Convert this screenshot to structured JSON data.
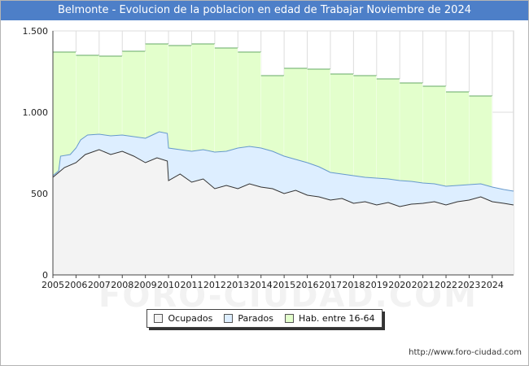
{
  "title": "Belmonte - Evolucion de la poblacion en edad de Trabajar Noviembre de 2024",
  "watermark": "FORO-CIUDAD.COM",
  "source": "http://www.foro-ciudad.com",
  "colors": {
    "title_bg": "#4d7fc8",
    "ocupados": "#f3f3f3",
    "parados": "#ddeeff",
    "hab": "#e3ffcc",
    "hab_line": "#66aa66",
    "parados_line": "#6699cc",
    "ocupados_line": "#333333"
  },
  "legend": [
    {
      "label": "Ocupados",
      "color": "#f3f3f3"
    },
    {
      "label": "Parados",
      "color": "#ddeeff"
    },
    {
      "label": "Hab. entre 16-64",
      "color": "#e3ffcc"
    }
  ],
  "chart_data": {
    "type": "area",
    "title": "Belmonte - Evolucion de la poblacion en edad de Trabajar Noviembre de 2024",
    "xlabel": "",
    "ylabel": "",
    "xlim": [
      2005,
      2024.92
    ],
    "ylim": [
      0,
      1500
    ],
    "x_ticks": [
      "2005",
      "2006",
      "2007",
      "2008",
      "2009",
      "2010",
      "2011",
      "2012",
      "2013",
      "2014",
      "2015",
      "2016",
      "2017",
      "2018",
      "2019",
      "2020",
      "2021",
      "2022",
      "2023",
      "2024"
    ],
    "y_ticks": [
      {
        "value": 0,
        "label": "0"
      },
      {
        "value": 500,
        "label": "500"
      },
      {
        "value": 1000,
        "label": "1.000"
      },
      {
        "value": 1500,
        "label": "1.500"
      }
    ],
    "grid": true,
    "hab_16_64": [
      {
        "year": 2005,
        "value": 1370
      },
      {
        "year": 2006,
        "value": 1350
      },
      {
        "year": 2007,
        "value": 1345
      },
      {
        "year": 2008,
        "value": 1375
      },
      {
        "year": 2009,
        "value": 1420
      },
      {
        "year": 2010,
        "value": 1410
      },
      {
        "year": 2011,
        "value": 1420
      },
      {
        "year": 2012,
        "value": 1395
      },
      {
        "year": 2013,
        "value": 1370
      },
      {
        "year": 2014,
        "value": 1225
      },
      {
        "year": 2015,
        "value": 1270
      },
      {
        "year": 2016,
        "value": 1265
      },
      {
        "year": 2017,
        "value": 1235
      },
      {
        "year": 2018,
        "value": 1225
      },
      {
        "year": 2019,
        "value": 1205
      },
      {
        "year": 2020,
        "value": 1180
      },
      {
        "year": 2021,
        "value": 1160
      },
      {
        "year": 2022,
        "value": 1125
      },
      {
        "year": 2023,
        "value": 1100
      }
    ],
    "parados_top": [
      {
        "x": 2005,
        "y": 610
      },
      {
        "x": 2005.25,
        "y": 640
      },
      {
        "x": 2005.33,
        "y": 730
      },
      {
        "x": 2005.75,
        "y": 740
      },
      {
        "x": 2006,
        "y": 780
      },
      {
        "x": 2006.2,
        "y": 830
      },
      {
        "x": 2006.5,
        "y": 860
      },
      {
        "x": 2007,
        "y": 865
      },
      {
        "x": 2007.5,
        "y": 855
      },
      {
        "x": 2008,
        "y": 860
      },
      {
        "x": 2008.5,
        "y": 850
      },
      {
        "x": 2009,
        "y": 840
      },
      {
        "x": 2009.3,
        "y": 860
      },
      {
        "x": 2009.6,
        "y": 880
      },
      {
        "x": 2009.95,
        "y": 870
      },
      {
        "x": 2010,
        "y": 780
      },
      {
        "x": 2010.5,
        "y": 770
      },
      {
        "x": 2011,
        "y": 760
      },
      {
        "x": 2011.5,
        "y": 770
      },
      {
        "x": 2012,
        "y": 755
      },
      {
        "x": 2012.5,
        "y": 760
      },
      {
        "x": 2013,
        "y": 780
      },
      {
        "x": 2013.5,
        "y": 790
      },
      {
        "x": 2014,
        "y": 780
      },
      {
        "x": 2014.5,
        "y": 760
      },
      {
        "x": 2015,
        "y": 730
      },
      {
        "x": 2015.5,
        "y": 710
      },
      {
        "x": 2016,
        "y": 690
      },
      {
        "x": 2016.5,
        "y": 665
      },
      {
        "x": 2017,
        "y": 630
      },
      {
        "x": 2017.5,
        "y": 620
      },
      {
        "x": 2018,
        "y": 610
      },
      {
        "x": 2018.5,
        "y": 600
      },
      {
        "x": 2019,
        "y": 595
      },
      {
        "x": 2019.5,
        "y": 590
      },
      {
        "x": 2020,
        "y": 580
      },
      {
        "x": 2020.5,
        "y": 575
      },
      {
        "x": 2021,
        "y": 565
      },
      {
        "x": 2021.5,
        "y": 560
      },
      {
        "x": 2022,
        "y": 545
      },
      {
        "x": 2022.5,
        "y": 550
      },
      {
        "x": 2023,
        "y": 555
      },
      {
        "x": 2023.5,
        "y": 560
      },
      {
        "x": 2024,
        "y": 540
      },
      {
        "x": 2024.5,
        "y": 525
      },
      {
        "x": 2024.92,
        "y": 515
      }
    ],
    "ocupados": [
      {
        "x": 2005,
        "y": 600
      },
      {
        "x": 2005.25,
        "y": 630
      },
      {
        "x": 2005.5,
        "y": 660
      },
      {
        "x": 2006,
        "y": 690
      },
      {
        "x": 2006.4,
        "y": 740
      },
      {
        "x": 2007,
        "y": 770
      },
      {
        "x": 2007.5,
        "y": 740
      },
      {
        "x": 2008,
        "y": 760
      },
      {
        "x": 2008.5,
        "y": 730
      },
      {
        "x": 2009,
        "y": 690
      },
      {
        "x": 2009.5,
        "y": 720
      },
      {
        "x": 2009.95,
        "y": 700
      },
      {
        "x": 2010,
        "y": 580
      },
      {
        "x": 2010.5,
        "y": 620
      },
      {
        "x": 2011,
        "y": 570
      },
      {
        "x": 2011.5,
        "y": 590
      },
      {
        "x": 2012,
        "y": 530
      },
      {
        "x": 2012.5,
        "y": 550
      },
      {
        "x": 2013,
        "y": 530
      },
      {
        "x": 2013.5,
        "y": 560
      },
      {
        "x": 2014,
        "y": 540
      },
      {
        "x": 2014.5,
        "y": 530
      },
      {
        "x": 2015,
        "y": 500
      },
      {
        "x": 2015.5,
        "y": 520
      },
      {
        "x": 2016,
        "y": 490
      },
      {
        "x": 2016.5,
        "y": 480
      },
      {
        "x": 2017,
        "y": 460
      },
      {
        "x": 2017.5,
        "y": 470
      },
      {
        "x": 2018,
        "y": 440
      },
      {
        "x": 2018.5,
        "y": 450
      },
      {
        "x": 2019,
        "y": 430
      },
      {
        "x": 2019.5,
        "y": 445
      },
      {
        "x": 2020,
        "y": 420
      },
      {
        "x": 2020.5,
        "y": 435
      },
      {
        "x": 2021,
        "y": 440
      },
      {
        "x": 2021.5,
        "y": 450
      },
      {
        "x": 2022,
        "y": 430
      },
      {
        "x": 2022.5,
        "y": 450
      },
      {
        "x": 2023,
        "y": 460
      },
      {
        "x": 2023.5,
        "y": 480
      },
      {
        "x": 2024,
        "y": 450
      },
      {
        "x": 2024.5,
        "y": 440
      },
      {
        "x": 2024.92,
        "y": 430
      }
    ]
  }
}
